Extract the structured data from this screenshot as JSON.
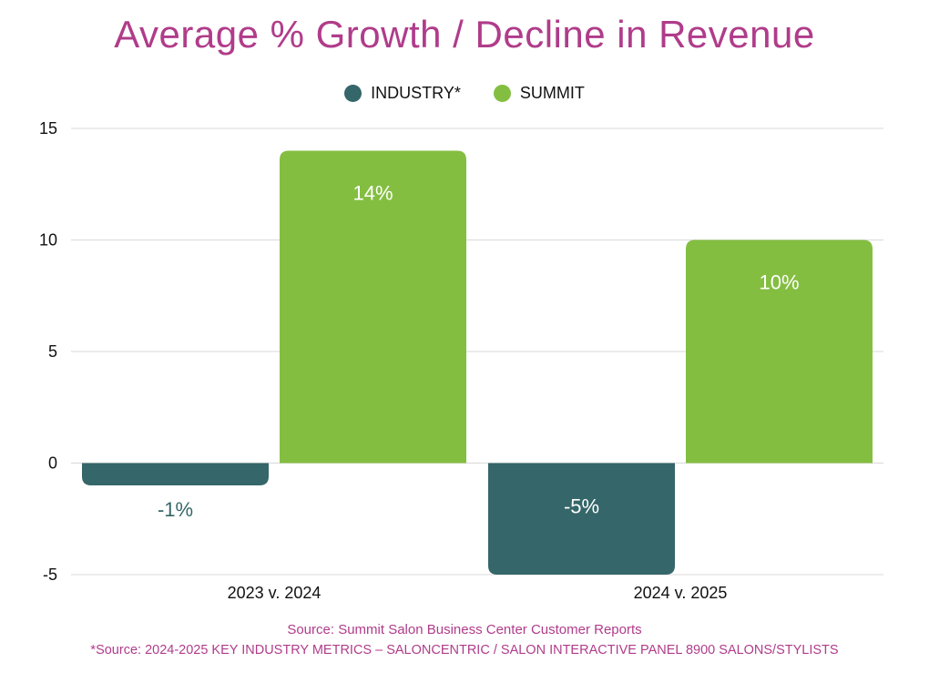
{
  "chart_data": {
    "type": "bar",
    "title": "Average % Growth / Decline in Revenue",
    "categories": [
      "2023 v. 2024",
      "2024 v. 2025"
    ],
    "series": [
      {
        "name": "INDUSTRY*",
        "values": [
          -1,
          -5
        ],
        "color": "#356669",
        "labels": [
          "-1%",
          "-5%"
        ]
      },
      {
        "name": "SUMMIT",
        "values": [
          14,
          10
        ],
        "color": "#84be41",
        "labels": [
          "14%",
          "10%"
        ]
      }
    ],
    "yticks": [
      15,
      10,
      5,
      0,
      -5
    ],
    "ylim": [
      -5,
      15
    ],
    "grid": true,
    "legend_position": "top-center",
    "xlabel": "",
    "ylabel": ""
  },
  "sources": {
    "line1": "Source: Summit Salon Business Center Customer Reports",
    "line2": "*Source: 2024-2025 KEY INDUSTRY METRICS – SALONCENTRIC / SALON INTERACTIVE PANEL 8900 SALONS/STYLISTS"
  }
}
